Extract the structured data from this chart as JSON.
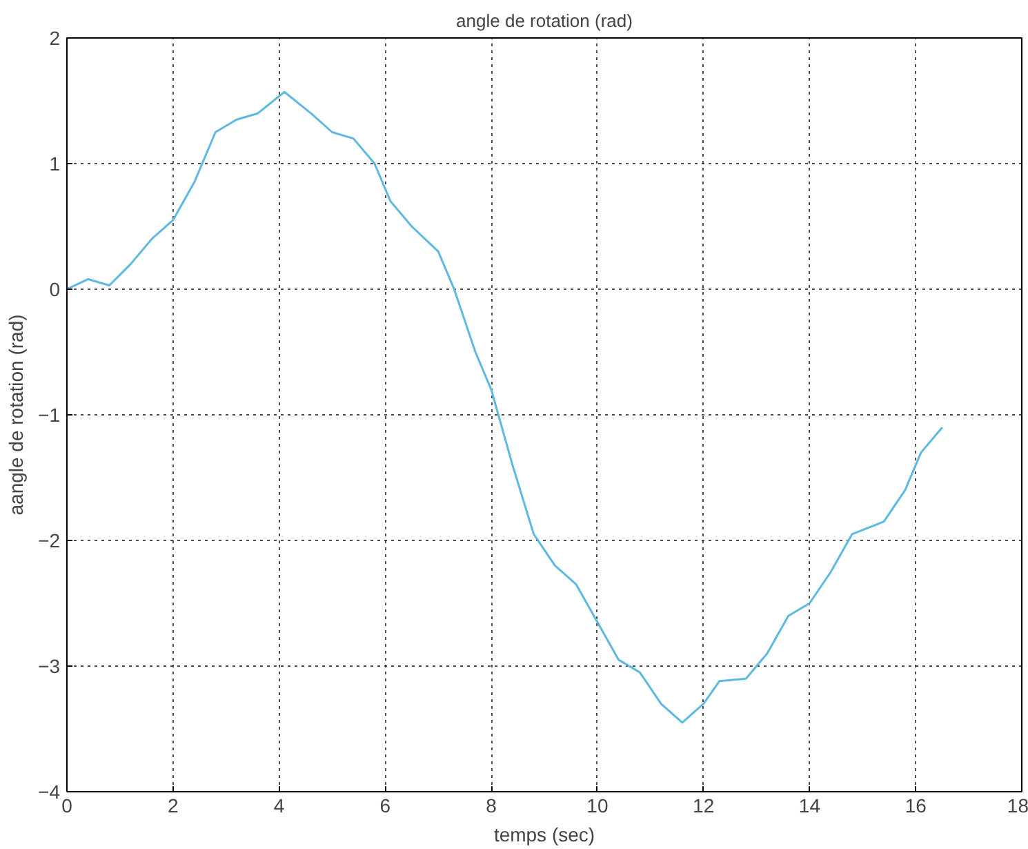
{
  "chart_data": {
    "type": "line",
    "title": "angle de rotation (rad)",
    "xlabel": "temps (sec)",
    "ylabel": "aangle de rotation (rad)",
    "x": [
      0,
      0.4,
      0.8,
      1.2,
      1.6,
      2,
      2.4,
      2.8,
      3.2,
      3.6,
      4.1,
      4.6,
      5,
      5.4,
      5.8,
      6.1,
      6.5,
      7,
      7.3,
      7.7,
      8,
      8.4,
      8.8,
      9.2,
      9.6,
      10,
      10.4,
      10.8,
      11.2,
      11.6,
      12,
      12.3,
      12.8,
      13.2,
      13.6,
      14,
      14.4,
      14.8,
      15.4,
      15.8,
      16.1,
      16.5
    ],
    "series": [
      {
        "color": "#5fb8e0",
        "values": [
          0,
          0.08,
          0.03,
          0.2,
          0.4,
          0.55,
          0.85,
          1.25,
          1.35,
          1.4,
          1.57,
          1.4,
          1.25,
          1.2,
          1.0,
          0.7,
          0.5,
          0.3,
          0,
          -0.5,
          -0.8,
          -1.4,
          -1.95,
          -2.2,
          -2.35,
          -2.65,
          -2.95,
          -3.05,
          -3.3,
          -3.45,
          -3.3,
          -3.12,
          -3.1,
          -2.9,
          -2.6,
          -2.5,
          -2.25,
          -1.95,
          -1.85,
          -1.6,
          -1.3,
          -1.1
        ]
      }
    ],
    "xlim": [
      0,
      18
    ],
    "ylim": [
      -4,
      2
    ],
    "xticks": [
      0,
      2,
      4,
      6,
      8,
      10,
      12,
      14,
      16,
      18
    ],
    "yticks": [
      -4,
      -3,
      -2,
      -1,
      0,
      1,
      2
    ],
    "grid": true,
    "line_style": "solid",
    "marker": "none"
  }
}
